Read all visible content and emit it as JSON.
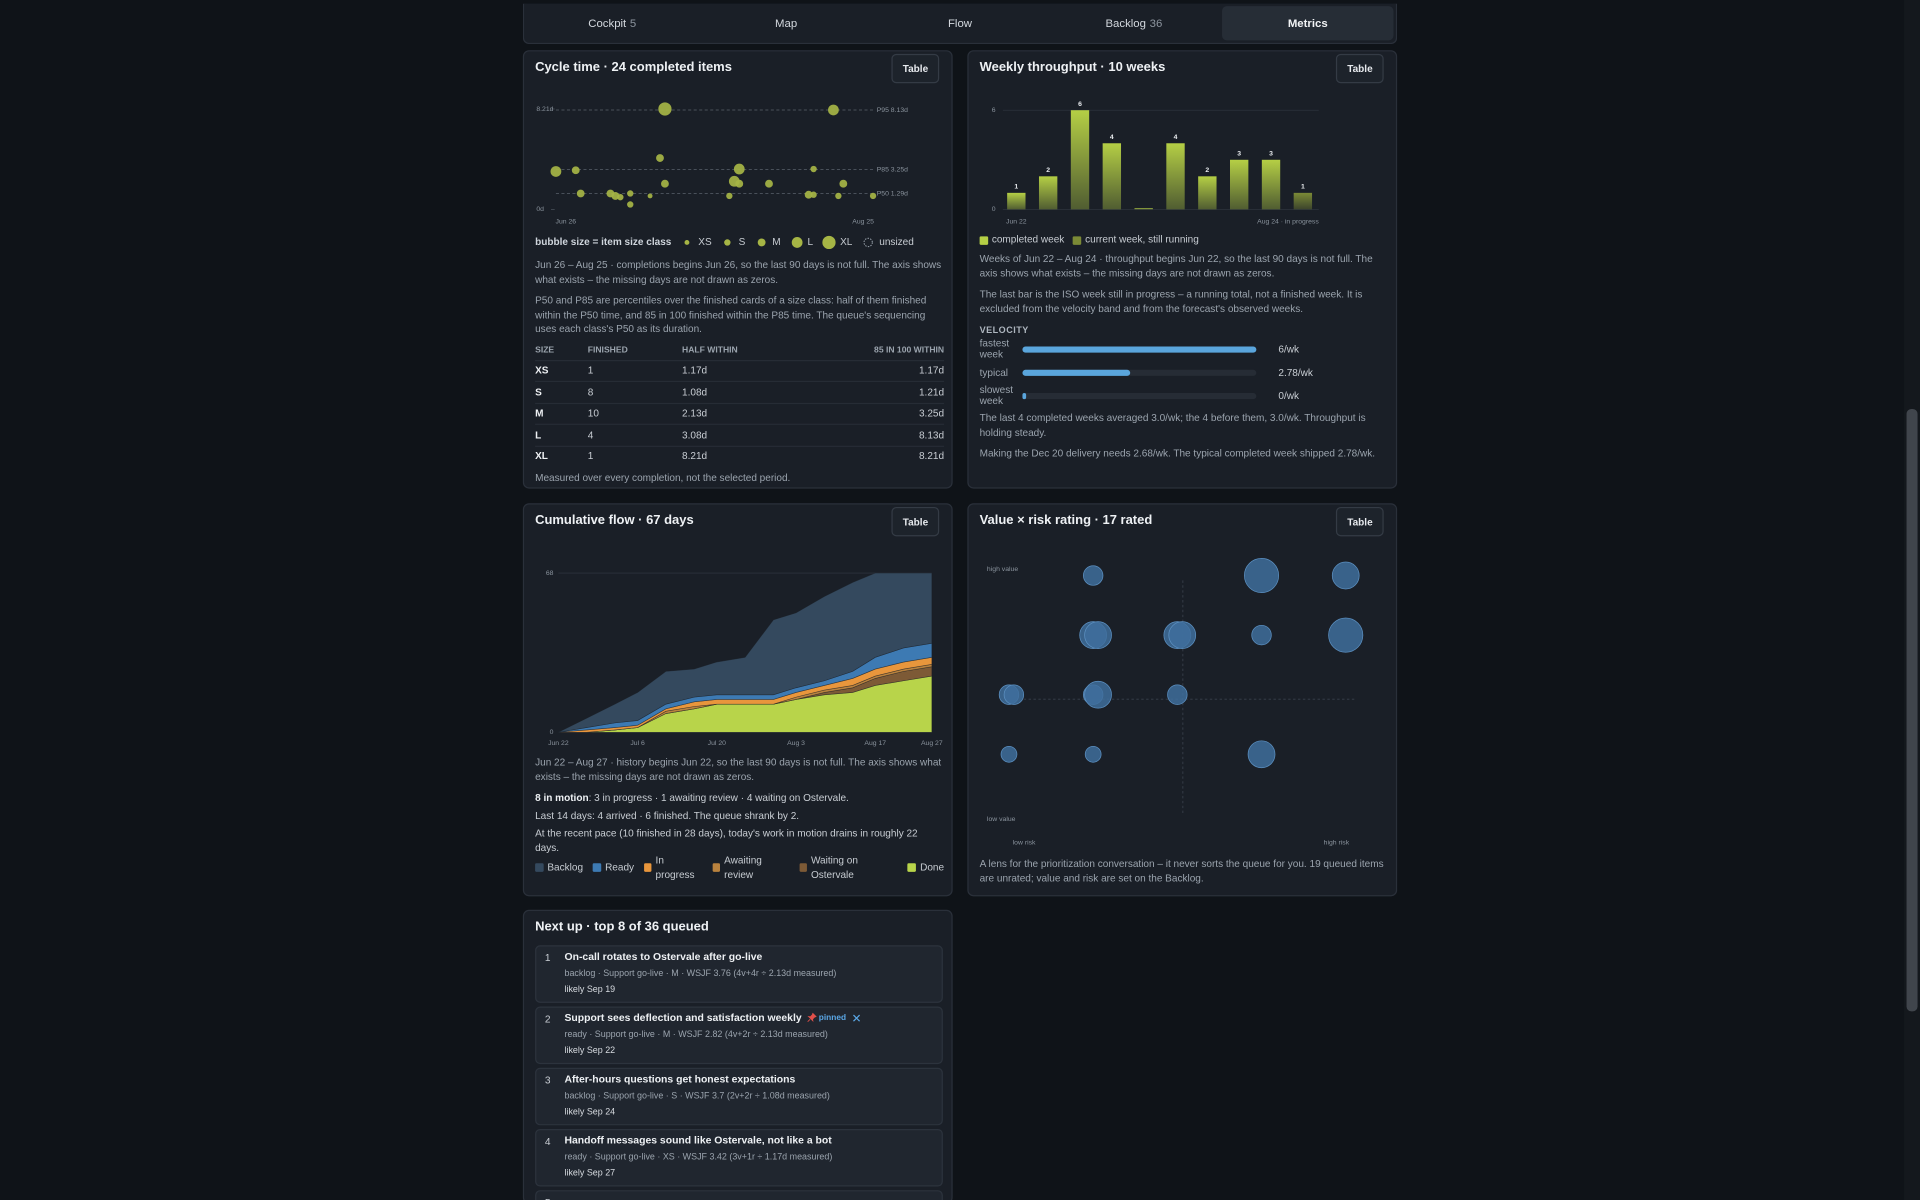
{
  "tabs": [
    {
      "label": "Cockpit",
      "count": 5
    },
    {
      "label": "Map"
    },
    {
      "label": "Flow"
    },
    {
      "label": "Backlog",
      "count": 36
    },
    {
      "label": "Metrics",
      "active": true
    }
  ],
  "cycle_time": {
    "title": "Cycle time · 24 completed items",
    "button": "Table",
    "chart_data": {
      "type": "scatter",
      "x": [
        "Jul 16",
        "Aug 19",
        "Jun 24",
        "Jun 28",
        "Jul 15",
        "Jul 31",
        "Jul 30",
        "Jul 31",
        "Jul 16",
        "Aug 6",
        "Aug 15",
        "Aug 21",
        "Jun 29",
        "Jul 5",
        "Jul 6",
        "Jul 7",
        "Jul 9",
        "Jul 9",
        "Jul 13",
        "Jul 29",
        "Aug 14",
        "Aug 15",
        "Aug 20",
        "Aug 27"
      ],
      "values": [
        8.21,
        8.13,
        3.1,
        3.2,
        4.2,
        3.3,
        2.3,
        2.1,
        2.1,
        2.1,
        3.3,
        2.1,
        1.3,
        1.3,
        1.1,
        1.0,
        1.3,
        0.4,
        1.1,
        1.1,
        1.2,
        1.2,
        1.1,
        1.1
      ],
      "sizes": [
        "XL",
        "L",
        "L",
        "M",
        "M",
        "L",
        "L",
        "M",
        "M",
        "M",
        "S",
        "M",
        "M",
        "M",
        "M",
        "S",
        "S",
        "S",
        "XS",
        "S",
        "M",
        "S",
        "S",
        "S"
      ],
      "color": "#a6b545",
      "xlim": [
        "Jun 24",
        "Aug 27"
      ],
      "xticks": [
        "Jun 26",
        "Aug 25"
      ],
      "ylim": [
        0,
        8.21
      ],
      "yticks": [
        {
          "value": 0,
          "label": "0d"
        },
        {
          "value": 8.21,
          "label": "8.21d"
        }
      ],
      "reference_lines": [
        {
          "label": "P95 8.13d",
          "value": 8.13
        },
        {
          "label": "P85 3.25d",
          "value": 3.25
        },
        {
          "label": "P50 1.29d",
          "value": 1.29
        }
      ]
    },
    "legend": {
      "title": "bubble size = item size class",
      "items": [
        "XS",
        "S",
        "M",
        "L",
        "XL",
        "unsized"
      ]
    },
    "paragraphs": [
      "Jun 26 – Aug 25 · completions begins Jun 26, so the last 90 days is not full. The axis shows what exists – the missing days are not drawn as zeros.",
      "P50 and P85 are percentiles over the finished cards of a size class: half of them finished within the P50 time, and 85 in 100 finished within the P85 time. The queue's sequencing uses each class's P50 as its duration."
    ],
    "table": {
      "header": [
        "SIZE",
        "FINISHED",
        "HALF WITHIN",
        "85 IN 100 WITHIN"
      ],
      "rows": [
        [
          "XS",
          1,
          "1.17d",
          "1.17d"
        ],
        [
          "S",
          8,
          "1.08d",
          "1.21d"
        ],
        [
          "M",
          10,
          "2.13d",
          "3.25d"
        ],
        [
          "L",
          4,
          "3.08d",
          "8.13d"
        ],
        [
          "XL",
          1,
          "8.21d",
          "8.21d"
        ]
      ]
    },
    "note": "Measured over every completion, not the selected period."
  },
  "throughput": {
    "title": "Weekly throughput · 10 weeks",
    "button": "Table",
    "chart_data": {
      "type": "bar",
      "categories": [
        "Jun 22",
        null,
        null,
        null,
        null,
        null,
        null,
        null,
        null,
        "Aug 24 · in progress"
      ],
      "values": [
        1,
        2,
        6,
        4,
        0,
        4,
        2,
        3,
        3,
        1
      ],
      "colors": [
        "#b5cf45",
        "#b5cf45",
        "#b5cf45",
        "#b5cf45",
        "#b5cf45",
        "#b5cf45",
        "#b5cf45",
        "#b5cf45",
        "#b5cf45",
        "#7b8a36"
      ],
      "ylim": [
        0,
        6
      ],
      "yticks": [
        0,
        6
      ],
      "grid": true
    },
    "legend": [
      {
        "label": "completed week",
        "color": "#b5cf45"
      },
      {
        "label": "current week, still running",
        "color": "#7b8a36"
      }
    ],
    "paragraphs": [
      "Weeks of Jun 22 – Aug 24 · throughput begins Jun 22, so the last 90 days is not full. The axis shows what exists – the missing days are not drawn as zeros.",
      "The last bar is the ISO week still in progress – a running total, not a finished week. It is excluded from the velocity band and from the forecast's observed weeks."
    ],
    "velocity": {
      "title": "VELOCITY",
      "xlim": [
        0,
        6
      ],
      "color": "#5aa5dc",
      "rows": [
        {
          "label": "fastest week",
          "value": 6,
          "value_label": "6/wk"
        },
        {
          "label": "typical",
          "value": 2.78,
          "value_label": "2.78/wk"
        },
        {
          "label": "slowest week",
          "value": 0,
          "value_label": "0/wk"
        }
      ]
    },
    "notes": [
      "The last 4 completed weeks averaged 3.0/wk; the 4 before them, 3.0/wk. Throughput is holding steady.",
      "Making the Dec 20 delivery needs 2.68/wk. The typical completed week shipped 2.78/wk."
    ]
  },
  "cumulative_flow": {
    "title": "Cumulative flow · 67 days",
    "button": "Table",
    "chart_data": {
      "type": "stacked_area",
      "x": [
        "Jun 22",
        "Jun 27",
        "Jul 2",
        "Jul 6",
        "Jul 11",
        "Jul 16",
        "Jul 20",
        "Jul 25",
        "Jul 30",
        "Aug 3",
        "Aug 8",
        "Aug 13",
        "Aug 17",
        "Aug 22",
        "Aug 27"
      ],
      "series": [
        {
          "name": "Backlog",
          "color": "#34495e",
          "values": [
            0,
            4,
            8,
            12,
            14,
            12,
            14,
            16,
            32,
            32,
            36,
            38,
            36,
            32,
            30
          ]
        },
        {
          "name": "Ready",
          "color": "#3d7ab3",
          "values": [
            0,
            1,
            2,
            2,
            2,
            2,
            2,
            2,
            2,
            2,
            2,
            3,
            5,
            6,
            6
          ]
        },
        {
          "name": "In progress",
          "color": "#e8963c",
          "values": [
            0,
            1,
            1,
            1,
            1,
            2,
            2,
            2,
            2,
            2,
            2,
            3,
            3,
            3,
            3
          ]
        },
        {
          "name": "Awaiting review",
          "color": "#b9823e",
          "values": [
            0,
            0,
            0,
            0,
            1,
            1,
            0,
            0,
            0,
            1,
            1,
            1,
            1,
            1,
            1
          ]
        },
        {
          "name": "Waiting on Ostervale",
          "color": "#7d5a36",
          "values": [
            0,
            0,
            0,
            0,
            0,
            0,
            0,
            0,
            0,
            0,
            1,
            2,
            3,
            4,
            4
          ]
        },
        {
          "name": "Done",
          "color": "#b8d44a",
          "values": [
            0,
            0,
            1,
            2,
            8,
            10,
            12,
            12,
            12,
            14,
            16,
            17,
            20,
            22,
            24
          ]
        }
      ],
      "xlim": [
        "Jun 22",
        "Aug 27"
      ],
      "xticks": [
        "Jun 22",
        "Jul 6",
        "Jul 20",
        "Aug 3",
        "Aug 17",
        "Aug 27"
      ],
      "ylim": [
        0,
        68
      ],
      "yticks": [
        0,
        68
      ],
      "grid": true
    },
    "paragraph": "Jun 22 – Aug 27 · history begins Jun 22, so the last 90 days is not full. The axis shows what exists – the missing days are not drawn as zeros.",
    "motion": {
      "bold": "8 in motion",
      "rest": ": 3 in progress · 1 awaiting review · 4 waiting on Ostervale."
    },
    "lines": [
      "Last 14 days: 4 arrived · 6 finished. The queue shrank by 2.",
      "At the recent pace (10 finished in 28 days), today's work in motion drains in roughly 22 days."
    ]
  },
  "value_risk": {
    "title": "Value × risk rating · 17 rated",
    "button": "Table",
    "chart_data": {
      "type": "bubble",
      "x": [
        2,
        4,
        5,
        2,
        2,
        3,
        3,
        4,
        5,
        1,
        1,
        2,
        2,
        3,
        1,
        2,
        4
      ],
      "values": [
        4,
        4,
        4,
        3,
        3,
        3,
        3,
        3,
        3,
        2,
        2,
        2,
        2,
        2,
        1,
        1,
        1
      ],
      "sizes": [
        "M",
        "XL",
        "L",
        "L",
        "L",
        "L",
        "L",
        "M",
        "XL",
        "M",
        "M",
        "M",
        "L",
        "M",
        "S",
        "S",
        "L"
      ],
      "color": "#3f6f9c",
      "xlim": [
        1,
        5
      ],
      "ylim": [
        1,
        4
      ],
      "axis_labels": {
        "y_high": "high value",
        "y_low": "low value",
        "x_low": "low risk",
        "x_high": "high risk"
      }
    },
    "note": "A lens for the prioritization conversation – it never sorts the queue for you. 19 queued items are unrated; value and risk are set on the Backlog."
  },
  "next_up": {
    "title": "Next up · top 8 of 36 queued",
    "items": [
      {
        "rank": 1,
        "title": "On-call rotates to Ostervale after go-live",
        "meta": "backlog · Support go-live · M · WSJF 3.76 (4v+4r ÷ 2.13d measured)",
        "likely": "likely Sep 19"
      },
      {
        "rank": 2,
        "title": "Support sees deflection and satisfaction weekly",
        "badge": "pinned",
        "meta": "ready · Support go-live · M · WSJF 2.82 (4v+2r ÷ 2.13d measured)",
        "likely": "likely Sep 22"
      },
      {
        "rank": 3,
        "title": "After-hours questions get honest expectations",
        "meta": "backlog · Support go-live · S · WSJF 3.7 (2v+2r ÷ 1.08d measured)",
        "likely": "likely Sep 24"
      },
      {
        "rank": 4,
        "title": "Handoff messages sound like Ostervale, not like a bot",
        "meta": "ready · Support go-live · XS · WSJF 3.42 (3v+1r ÷ 1.17d measured)",
        "likely": "likely Sep 27"
      },
      {
        "rank": 5
      }
    ]
  }
}
